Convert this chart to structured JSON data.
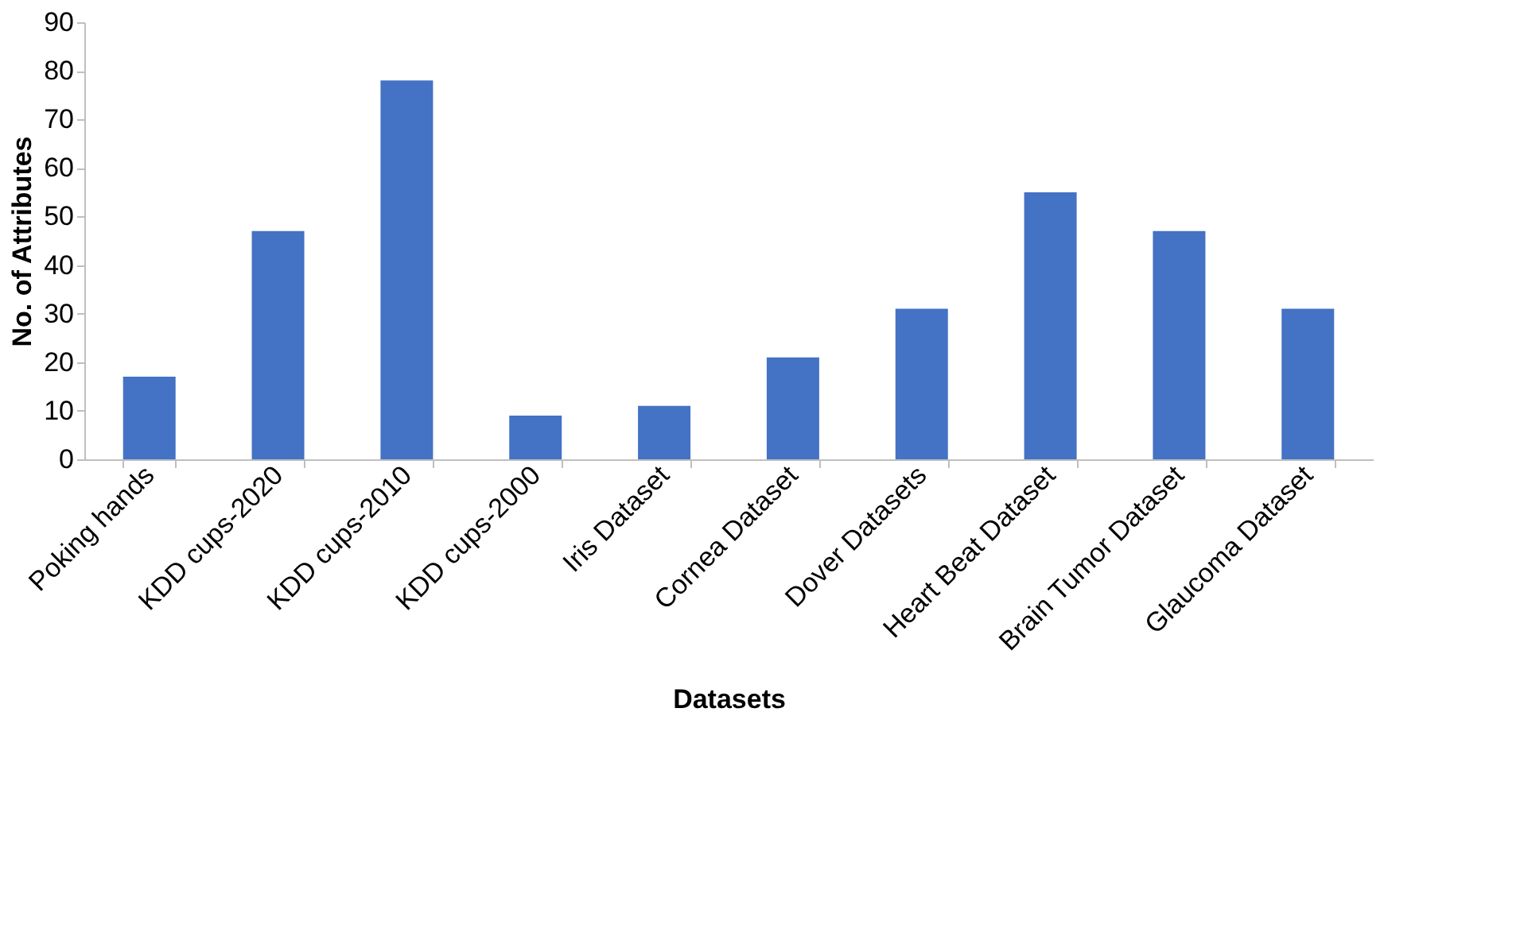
{
  "chart_data": {
    "type": "bar",
    "xlabel": "Datasets",
    "ylabel": "No. of Attributes",
    "categories": [
      "Poking hands",
      "KDD cups-2020",
      "KDD cups-2010",
      "KDD cups-2000",
      "Iris Dataset",
      "Cornea Dataset",
      "Dover Datasets",
      "Heart Beat Dataset",
      "Brain Tumor Dataset",
      "Glaucoma Dataset"
    ],
    "values": [
      17,
      47,
      78,
      9,
      11,
      21,
      31,
      55,
      47,
      31
    ],
    "color": "#4472c4",
    "ylim": [
      0,
      90
    ],
    "yticks": [
      0,
      10,
      20,
      30,
      40,
      50,
      60,
      70,
      80,
      90
    ],
    "grid": false
  }
}
